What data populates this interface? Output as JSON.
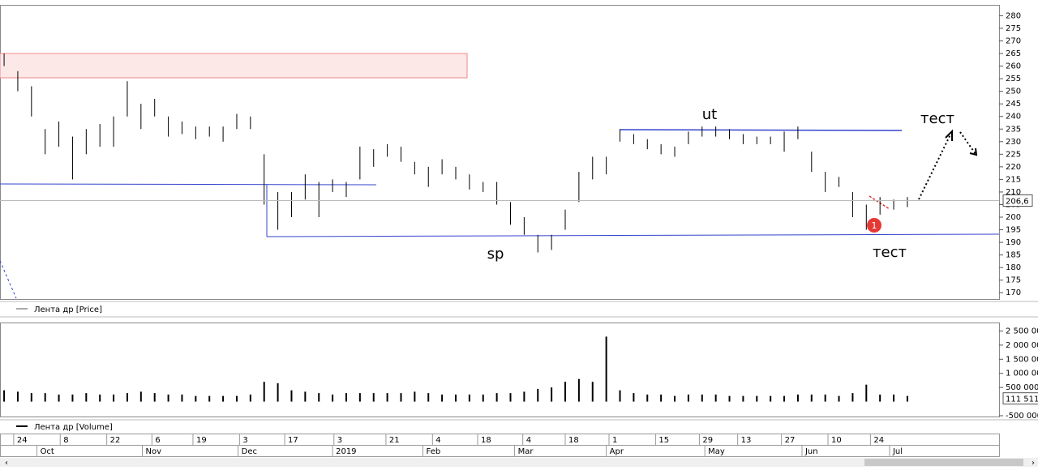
{
  "chart_data": [
    {
      "type": "ohlc",
      "series": [
        {
          "name": "Лента др [Price]",
          "color": "#000000",
          "high": [
            265,
            258,
            252,
            235,
            238,
            232,
            235,
            237,
            240,
            254,
            245,
            247,
            240,
            238,
            236,
            236,
            236,
            241,
            240,
            225,
            210,
            210,
            217,
            214,
            215,
            214,
            228,
            227,
            229,
            228,
            222,
            220,
            223,
            220,
            217,
            214,
            214,
            206,
            200,
            193,
            193,
            203,
            218,
            224,
            224,
            235,
            233,
            231,
            229,
            228,
            234,
            236,
            236,
            235,
            233,
            232,
            232,
            234,
            236,
            226,
            218,
            216,
            210,
            205,
            208,
            207,
            208
          ],
          "low": [
            260,
            250,
            240,
            225,
            228,
            215,
            225,
            228,
            228,
            240,
            235,
            240,
            232,
            233,
            231,
            232,
            230,
            235,
            235,
            205,
            195,
            200,
            207,
            200,
            210,
            208,
            215,
            220,
            224,
            222,
            217,
            212,
            217,
            215,
            211,
            210,
            205,
            197,
            193,
            186,
            187,
            195,
            206,
            215,
            217,
            230,
            229,
            227,
            225,
            224,
            229,
            232,
            232,
            231,
            229,
            229,
            229,
            226,
            231,
            218,
            210,
            212,
            200,
            195,
            201,
            203,
            204
          ]
        }
      ],
      "xlim": [
        -0.3,
        72.7
      ],
      "ylim": [
        167.5,
        284
      ],
      "yticks": [
        170,
        175,
        180,
        185,
        190,
        195,
        200,
        205,
        210,
        215,
        220,
        225,
        230,
        235,
        240,
        245,
        250,
        255,
        260,
        265,
        270,
        275,
        280
      ],
      "last_price": {
        "value": 206.6,
        "label": "206,6"
      },
      "annotations": [
        "ut",
        "sp",
        "тест",
        "тест",
        "1"
      ]
    },
    {
      "type": "bar",
      "series": [
        {
          "name": "Лента др [Volume]",
          "color": "#000000",
          "values": [
            400000,
            350000,
            300000,
            300000,
            250000,
            250000,
            300000,
            250000,
            250000,
            300000,
            350000,
            300000,
            250000,
            250000,
            200000,
            200000,
            200000,
            200000,
            250000,
            700000,
            650000,
            400000,
            350000,
            300000,
            250000,
            300000,
            300000,
            300000,
            300000,
            300000,
            350000,
            300000,
            250000,
            250000,
            250000,
            250000,
            300000,
            300000,
            350000,
            450000,
            500000,
            700000,
            800000,
            700000,
            2300000,
            400000,
            300000,
            250000,
            250000,
            200000,
            250000,
            250000,
            250000,
            200000,
            200000,
            200000,
            200000,
            200000,
            250000,
            250000,
            250000,
            200000,
            300000,
            600000,
            250000,
            250000,
            200000
          ]
        }
      ],
      "xlim": [
        -0.3,
        72.7
      ],
      "ylim": [
        -500000,
        2800000
      ],
      "yticks": [
        {
          "value": -500000,
          "label": "-500 000"
        },
        {
          "value": 500000,
          "label": "500 000"
        },
        {
          "value": 1000000,
          "label": "1 000 000"
        },
        {
          "value": 1500000,
          "label": "1 500 000"
        },
        {
          "value": 2000000,
          "label": "2 000 000"
        },
        {
          "value": 2500000,
          "label": "2 500 000"
        }
      ],
      "last_value": {
        "value": 111511,
        "label": "111 511"
      }
    }
  ],
  "date_axis": {
    "day_ticks": [
      {
        "value": 0.7,
        "label": "24"
      },
      {
        "value": 4.1,
        "label": "8"
      },
      {
        "value": 7.5,
        "label": "22"
      },
      {
        "value": 10.8,
        "label": "6"
      },
      {
        "value": 13.8,
        "label": "19"
      },
      {
        "value": 17.2,
        "label": "3"
      },
      {
        "value": 20.5,
        "label": "17"
      },
      {
        "value": 24.1,
        "label": "3"
      },
      {
        "value": 27.9,
        "label": "21"
      },
      {
        "value": 31.3,
        "label": "4"
      },
      {
        "value": 34.6,
        "label": "18"
      },
      {
        "value": 37.9,
        "label": "4"
      },
      {
        "value": 41.0,
        "label": "18"
      },
      {
        "value": 44.2,
        "label": "1"
      },
      {
        "value": 47.6,
        "label": "15"
      },
      {
        "value": 50.8,
        "label": "29"
      },
      {
        "value": 53.6,
        "label": "13"
      },
      {
        "value": 56.8,
        "label": "27"
      },
      {
        "value": 60.2,
        "label": "10"
      },
      {
        "value": 63.3,
        "label": "24"
      }
    ],
    "month_ticks": [
      {
        "value": 2.4,
        "label": "Oct"
      },
      {
        "value": 10.1,
        "label": "Nov"
      },
      {
        "value": 17.1,
        "label": "Dec"
      },
      {
        "value": 24.0,
        "label": "2019"
      },
      {
        "value": 30.6,
        "label": "Feb"
      },
      {
        "value": 37.3,
        "label": "Mar"
      },
      {
        "value": 44.0,
        "label": "Apr"
      },
      {
        "value": 51.2,
        "label": "May"
      },
      {
        "value": 58.3,
        "label": "Jun"
      },
      {
        "value": 64.7,
        "label": "Jul"
      }
    ]
  }
}
